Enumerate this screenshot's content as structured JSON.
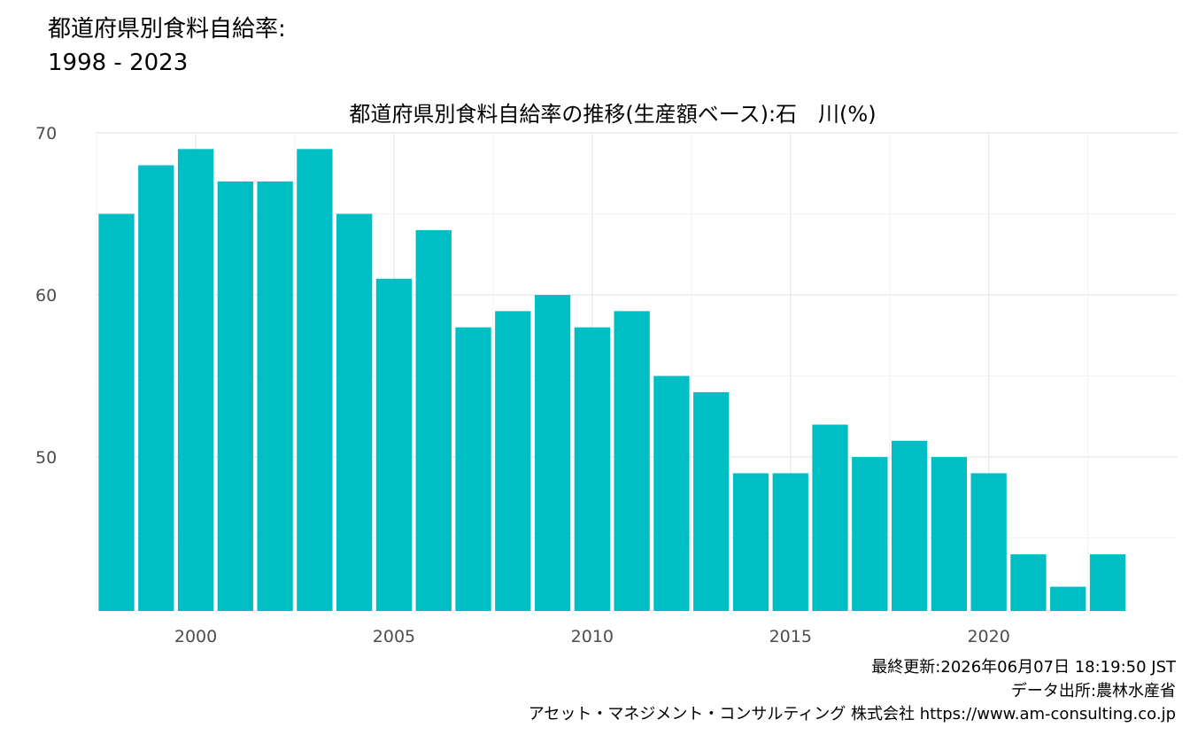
{
  "page": {
    "title_line_1": "都道府県別食料自給率:",
    "title_line_2": "1998 - 2023",
    "caption_line_1": "最終更新:2026年06月07日 18:19:50 JST",
    "caption_line_2": "データ出所:農林水産省",
    "caption_line_3": "アセット・マネジメント・コンサルティング 株式会社 https://www.am-consulting.co.jp"
  },
  "chart_data": {
    "type": "bar",
    "title": "都道府県別食料自給率の推移(生産額ベース):石　川(%)",
    "xlabel": "",
    "ylabel": "",
    "categories": [
      1998,
      1999,
      2000,
      2001,
      2002,
      2003,
      2004,
      2005,
      2006,
      2007,
      2008,
      2009,
      2010,
      2011,
      2012,
      2013,
      2014,
      2015,
      2016,
      2017,
      2018,
      2019,
      2020,
      2021,
      2022,
      2023
    ],
    "values": [
      65,
      68,
      69,
      67,
      67,
      69,
      65,
      61,
      64,
      58,
      59,
      60,
      58,
      59,
      55,
      54,
      49,
      49,
      52,
      50,
      51,
      50,
      49,
      44,
      42,
      44
    ],
    "ylim": [
      40.5,
      70
    ],
    "y_ticks": [
      50,
      60,
      70
    ],
    "x_ticks": [
      2000,
      2005,
      2010,
      2015,
      2020
    ],
    "bar_color": "#00BFC4",
    "grid": true,
    "legend": "none"
  }
}
